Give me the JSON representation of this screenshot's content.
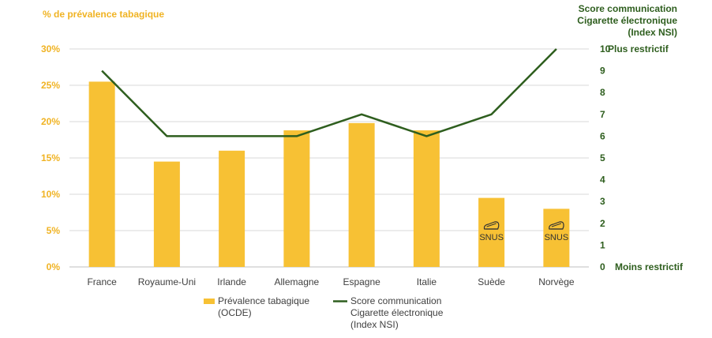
{
  "chart_data": {
    "type": "bar",
    "categories": [
      "France",
      "Royaume-Uni",
      "Irlande",
      "Allemagne",
      "Espagne",
      "Italie",
      "Suède",
      "Norvège"
    ],
    "left_axis": {
      "title": "% de prévalence tabagique",
      "ticks": [
        "0%",
        "5%",
        "10%",
        "15%",
        "20%",
        "25%",
        "30%"
      ],
      "ylim": [
        0,
        30
      ]
    },
    "right_axis": {
      "title_lines": [
        "Score communication",
        "Cigarette électronique",
        "(Index NSI)"
      ],
      "ticks": [
        "0",
        "1",
        "2",
        "3",
        "4",
        "5",
        "6",
        "7",
        "8",
        "9",
        "10"
      ],
      "ylim": [
        0,
        10
      ],
      "top_label": "Plus restrictif",
      "bottom_label": "Moins restrictif"
    },
    "series": [
      {
        "name": "Prévalence tabagique (OCDE)",
        "legend_lines": [
          "Prévalence tabagique",
          "(OCDE)"
        ],
        "type": "bar",
        "axis": "left",
        "color": "#f7c134",
        "values": [
          25.5,
          14.5,
          16,
          18.8,
          19.8,
          18.8,
          9.5,
          8
        ]
      },
      {
        "name": "Score communication Cigarette électronique (Index NSI)",
        "legend_lines": [
          "Score communication",
          "Cigarette électronique",
          "(Index NSI)"
        ],
        "type": "line",
        "axis": "right",
        "color": "#2e5e1e",
        "values": [
          9,
          6,
          6,
          6,
          7,
          6,
          7,
          10
        ]
      }
    ],
    "annotations": [
      {
        "category": "Suède",
        "text": "SNUS",
        "icon": "snus-pouch-icon"
      },
      {
        "category": "Norvège",
        "text": "SNUS",
        "icon": "snus-pouch-icon"
      }
    ],
    "grid": true,
    "legend_position": "bottom"
  }
}
